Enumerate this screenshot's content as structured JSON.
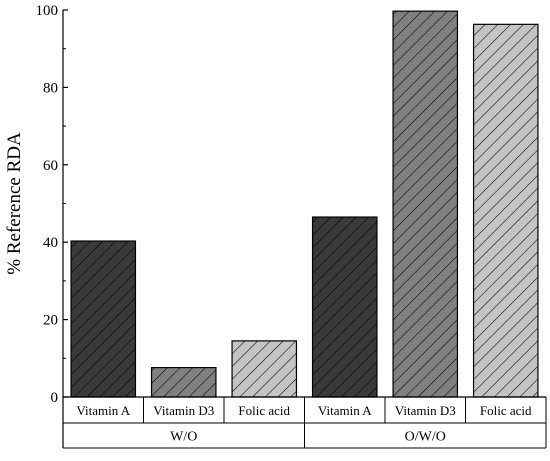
{
  "chart_data": {
    "type": "bar",
    "ylabel": "% Reference RDA",
    "ylim": [
      0,
      100
    ],
    "yticks": [
      0,
      20,
      40,
      60,
      80,
      100
    ],
    "groups": [
      {
        "label": "W/O",
        "categories": [
          "Vitamin A",
          "Vitamin D3",
          "Folic acid"
        ],
        "values": [
          40.3,
          7.6,
          14.5
        ]
      },
      {
        "label": "O/W/O",
        "categories": [
          "Vitamin A",
          "Vitamin D3",
          "Folic acid"
        ],
        "values": [
          46.5,
          99.7,
          96.3
        ]
      }
    ],
    "colors": {
      "Vitamin A": "#3a3a3a",
      "Vitamin D3": "#808080",
      "Folic acid": "#c4c4c4"
    },
    "bar_pattern": "diagonal hatch",
    "grid": false,
    "legend": "none"
  }
}
